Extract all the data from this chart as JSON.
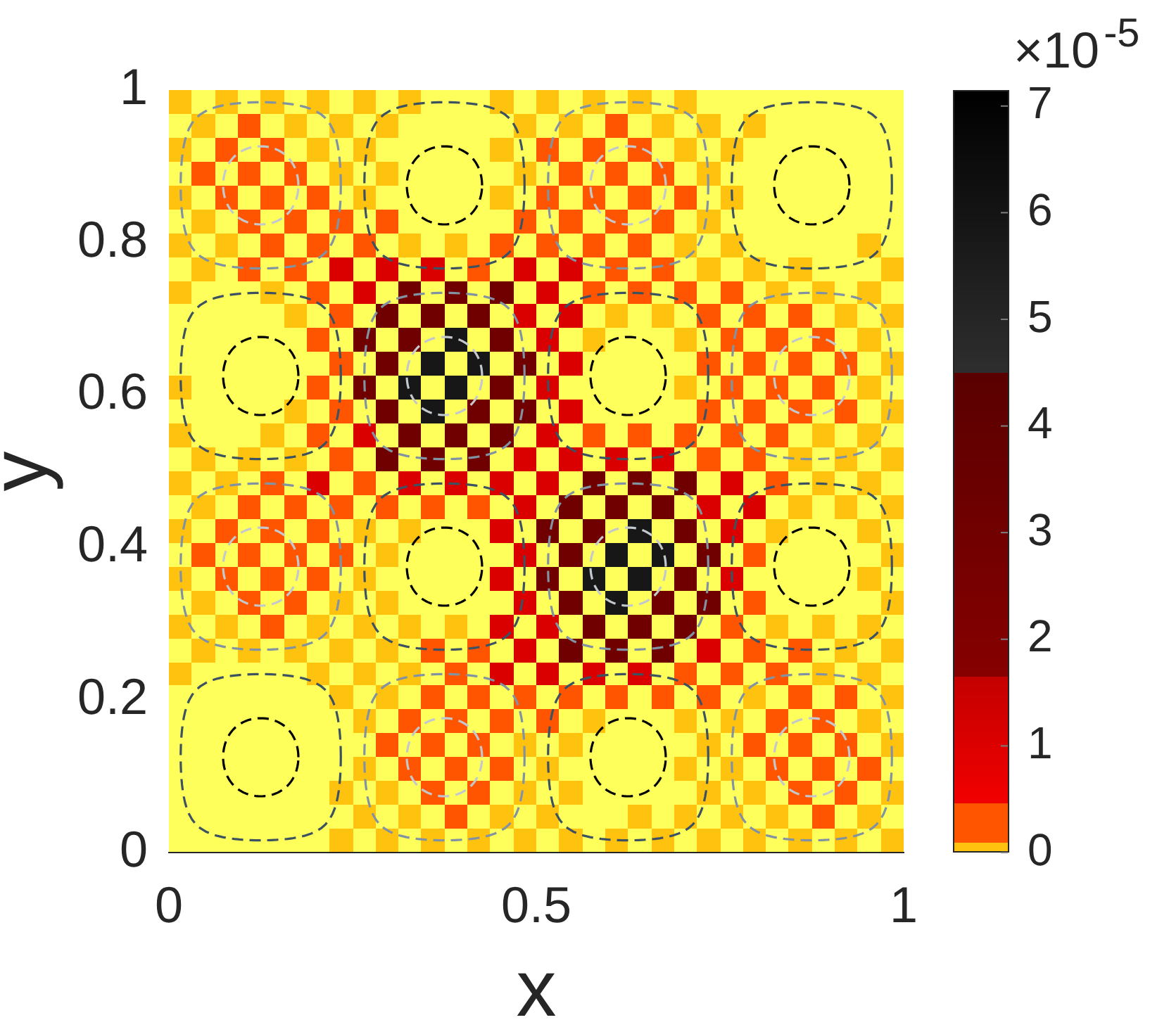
{
  "chart_data": {
    "type": "heatmap",
    "xlabel": "x",
    "ylabel": "y",
    "clabel": "×10$^{-5}$",
    "xlim": [
      0,
      1
    ],
    "ylim": [
      0,
      1
    ],
    "xticks": [
      0,
      0.5,
      1
    ],
    "yticks": [
      0,
      0.2,
      0.4,
      0.6,
      0.8,
      1
    ],
    "clim": [
      0,
      7.15
    ],
    "cticks": [
      0,
      1,
      2,
      3,
      4,
      5,
      6,
      7
    ],
    "cells": [
      [
        0.05,
        null,
        0.05,
        null,
        0.05,
        null,
        0.05,
        null,
        0.05,
        null,
        0.05,
        null,
        null,
        null,
        0.05,
        null,
        0.05,
        null,
        0.05,
        null,
        0.05,
        null,
        0.05,
        null,
        null,
        null,
        null,
        null,
        null,
        null,
        null,
        null
      ],
      [
        null,
        0.05,
        null,
        0.3,
        null,
        0.05,
        null,
        0.05,
        null,
        0.05,
        null,
        null,
        null,
        null,
        null,
        0.05,
        null,
        0.05,
        null,
        0.3,
        null,
        0.05,
        null,
        0.05,
        null,
        0.05,
        null,
        null,
        null,
        null,
        null,
        null
      ],
      [
        0.05,
        null,
        0.3,
        null,
        0.3,
        null,
        0.05,
        null,
        0.05,
        null,
        null,
        null,
        null,
        null,
        0.05,
        null,
        0.3,
        null,
        0.3,
        null,
        0.3,
        null,
        0.05,
        null,
        0.05,
        null,
        null,
        null,
        null,
        null,
        null,
        null
      ],
      [
        null,
        0.3,
        null,
        0.3,
        null,
        0.3,
        null,
        0.05,
        null,
        0.05,
        null,
        null,
        null,
        null,
        null,
        0.05,
        null,
        0.3,
        null,
        0.3,
        null,
        0.3,
        null,
        0.05,
        null,
        null,
        null,
        null,
        null,
        null,
        null,
        null
      ],
      [
        0.05,
        null,
        0.3,
        null,
        0.3,
        null,
        0.3,
        null,
        0.05,
        null,
        null,
        null,
        null,
        null,
        0.05,
        null,
        0.3,
        null,
        0.3,
        null,
        0.3,
        null,
        0.3,
        null,
        0.05,
        null,
        null,
        null,
        null,
        null,
        null,
        null
      ],
      [
        null,
        0.05,
        null,
        0.3,
        null,
        0.3,
        null,
        0.3,
        null,
        0.3,
        null,
        null,
        null,
        null,
        null,
        0.3,
        null,
        0.3,
        null,
        0.3,
        null,
        0.3,
        null,
        0.05,
        null,
        null,
        null,
        null,
        null,
        null,
        null,
        null
      ],
      [
        0.05,
        null,
        0.05,
        null,
        0.3,
        null,
        0.3,
        null,
        0.3,
        null,
        0.05,
        null,
        0.05,
        null,
        0.3,
        null,
        0.3,
        null,
        0.3,
        null,
        0.3,
        null,
        0.05,
        null,
        0.05,
        null,
        null,
        null,
        null,
        null,
        0.05,
        null
      ],
      [
        null,
        0.05,
        null,
        0.3,
        null,
        0.3,
        null,
        1.05,
        null,
        1.05,
        null,
        1.05,
        null,
        0.3,
        null,
        1.05,
        null,
        1.05,
        null,
        0.3,
        null,
        0.3,
        null,
        0.05,
        null,
        0.05,
        null,
        0.05,
        null,
        null,
        null,
        0.05
      ],
      [
        0.05,
        null,
        null,
        null,
        0.05,
        null,
        0.3,
        null,
        1.05,
        null,
        3.1,
        null,
        3.1,
        null,
        3.1,
        null,
        1.05,
        null,
        0.3,
        null,
        0.3,
        null,
        0.3,
        null,
        0.3,
        null,
        0.05,
        null,
        0.05,
        null,
        0.05,
        null
      ],
      [
        null,
        null,
        null,
        null,
        null,
        0.05,
        null,
        0.3,
        null,
        3.1,
        null,
        3.1,
        null,
        3.1,
        null,
        1.05,
        null,
        1.05,
        null,
        0.05,
        null,
        0.05,
        null,
        0.3,
        null,
        0.3,
        null,
        0.3,
        null,
        0.05,
        null,
        0.05
      ],
      [
        null,
        null,
        null,
        null,
        null,
        null,
        0.3,
        null,
        3.1,
        null,
        3.1,
        null,
        5.8,
        null,
        3.1,
        null,
        1.05,
        null,
        0.05,
        null,
        null,
        null,
        0.05,
        null,
        0.3,
        null,
        0.3,
        null,
        0.3,
        null,
        0.05,
        null
      ],
      [
        null,
        null,
        null,
        null,
        null,
        null,
        null,
        0.3,
        null,
        3.1,
        null,
        5.8,
        null,
        5.8,
        null,
        3.1,
        null,
        1.05,
        null,
        null,
        null,
        null,
        null,
        0.3,
        null,
        0.3,
        null,
        0.3,
        null,
        0.3,
        null,
        0.05
      ],
      [
        0.05,
        null,
        null,
        null,
        null,
        null,
        0.3,
        null,
        3.1,
        null,
        5.8,
        null,
        5.8,
        null,
        3.1,
        null,
        1.05,
        null,
        null,
        null,
        null,
        null,
        0.05,
        null,
        0.3,
        null,
        0.3,
        null,
        0.3,
        null,
        0.05,
        null
      ],
      [
        null,
        null,
        null,
        null,
        null,
        0.05,
        null,
        0.3,
        null,
        3.1,
        null,
        5.8,
        null,
        3.1,
        null,
        3.1,
        null,
        1.05,
        null,
        null,
        null,
        null,
        null,
        0.3,
        null,
        0.3,
        null,
        0.3,
        null,
        0.3,
        null,
        0.05
      ],
      [
        0.05,
        null,
        null,
        null,
        0.05,
        null,
        0.3,
        null,
        1.05,
        null,
        3.1,
        null,
        3.1,
        null,
        3.1,
        null,
        1.05,
        null,
        0.3,
        null,
        0.3,
        null,
        0.3,
        null,
        0.3,
        null,
        0.3,
        null,
        0.05,
        null,
        0.05,
        null
      ],
      [
        null,
        0.05,
        null,
        0.05,
        null,
        0.05,
        null,
        0.3,
        null,
        3.1,
        null,
        3.1,
        null,
        3.1,
        null,
        1.05,
        null,
        1.05,
        null,
        1.05,
        null,
        1.05,
        null,
        0.3,
        null,
        0.3,
        null,
        0.05,
        null,
        0.05,
        null,
        0.05
      ],
      [
        0.05,
        null,
        0.05,
        null,
        0.3,
        null,
        1.05,
        null,
        0.3,
        null,
        1.05,
        null,
        1.05,
        null,
        1.05,
        null,
        1.05,
        null,
        3.1,
        null,
        3.1,
        null,
        3.1,
        null,
        1.05,
        null,
        0.3,
        null,
        0.05,
        null,
        0.05,
        null
      ],
      [
        null,
        0.05,
        null,
        0.3,
        null,
        0.3,
        null,
        0.3,
        null,
        0.3,
        null,
        0.3,
        null,
        0.3,
        null,
        1.05,
        null,
        3.1,
        null,
        3.1,
        null,
        3.1,
        null,
        1.05,
        null,
        1.05,
        null,
        0.05,
        null,
        0.05,
        null,
        0.05
      ],
      [
        0.05,
        null,
        0.3,
        null,
        0.3,
        null,
        0.3,
        null,
        0.05,
        null,
        0.05,
        null,
        null,
        null,
        1.05,
        null,
        3.1,
        null,
        3.1,
        null,
        5.8,
        null,
        3.1,
        null,
        1.05,
        null,
        0.05,
        null,
        null,
        null,
        0.05,
        null
      ],
      [
        null,
        0.3,
        null,
        0.3,
        null,
        0.3,
        null,
        0.3,
        null,
        0.05,
        null,
        null,
        null,
        null,
        null,
        1.05,
        null,
        3.1,
        null,
        5.8,
        null,
        5.8,
        null,
        3.1,
        null,
        0.3,
        null,
        null,
        null,
        null,
        null,
        0.05
      ],
      [
        0.05,
        null,
        0.3,
        null,
        0.3,
        null,
        0.3,
        null,
        0.05,
        null,
        null,
        null,
        null,
        null,
        1.05,
        null,
        3.1,
        null,
        5.8,
        null,
        5.8,
        null,
        3.1,
        null,
        1.05,
        null,
        null,
        null,
        null,
        null,
        0.05,
        null
      ],
      [
        null,
        0.05,
        null,
        0.3,
        null,
        0.3,
        null,
        0.05,
        null,
        0.05,
        null,
        null,
        null,
        null,
        null,
        1.05,
        null,
        3.1,
        null,
        5.8,
        null,
        3.1,
        null,
        3.1,
        null,
        0.3,
        null,
        null,
        null,
        null,
        null,
        0.05
      ],
      [
        0.05,
        null,
        0.05,
        null,
        0.3,
        null,
        0.05,
        null,
        0.05,
        null,
        0.05,
        null,
        0.05,
        null,
        1.05,
        null,
        1.05,
        null,
        3.1,
        null,
        3.1,
        null,
        3.1,
        null,
        0.3,
        null,
        0.05,
        null,
        0.05,
        null,
        0.05,
        null
      ],
      [
        null,
        0.05,
        null,
        0.05,
        null,
        0.05,
        null,
        0.05,
        null,
        0.05,
        null,
        0.3,
        null,
        0.3,
        null,
        1.05,
        null,
        3.1,
        null,
        3.1,
        null,
        3.1,
        null,
        1.05,
        null,
        0.3,
        null,
        0.3,
        null,
        0.05,
        null,
        0.05
      ],
      [
        0.05,
        null,
        null,
        null,
        null,
        null,
        0.05,
        null,
        0.05,
        null,
        0.05,
        null,
        0.3,
        null,
        1.05,
        null,
        1.05,
        null,
        1.05,
        null,
        1.05,
        null,
        0.3,
        null,
        0.3,
        null,
        0.3,
        null,
        0.05,
        null,
        0.05,
        null
      ],
      [
        null,
        null,
        null,
        null,
        null,
        null,
        null,
        0.05,
        null,
        0.05,
        null,
        0.3,
        null,
        0.3,
        null,
        0.3,
        null,
        0.3,
        null,
        0.3,
        null,
        0.3,
        null,
        0.3,
        null,
        0.05,
        null,
        0.3,
        null,
        0.3,
        null,
        0.05
      ],
      [
        null,
        null,
        null,
        null,
        null,
        null,
        null,
        null,
        0.05,
        null,
        0.3,
        null,
        0.3,
        null,
        0.3,
        null,
        0.3,
        null,
        0.05,
        null,
        null,
        null,
        0.05,
        null,
        0.05,
        null,
        0.3,
        null,
        0.3,
        null,
        0.05,
        null
      ],
      [
        null,
        null,
        null,
        null,
        null,
        null,
        null,
        null,
        null,
        0.3,
        null,
        0.3,
        null,
        0.3,
        null,
        0.05,
        null,
        0.05,
        null,
        null,
        null,
        null,
        null,
        0.05,
        null,
        0.3,
        null,
        0.3,
        null,
        0.3,
        null,
        0.05
      ],
      [
        null,
        null,
        null,
        null,
        null,
        null,
        null,
        null,
        0.05,
        null,
        0.3,
        null,
        0.3,
        null,
        0.3,
        null,
        0.05,
        null,
        null,
        null,
        null,
        null,
        0.05,
        null,
        0.05,
        null,
        0.3,
        null,
        0.3,
        null,
        0.3,
        null
      ],
      [
        null,
        null,
        null,
        null,
        null,
        null,
        null,
        0.05,
        null,
        0.05,
        null,
        0.3,
        null,
        0.3,
        null,
        0.05,
        null,
        0.05,
        null,
        null,
        null,
        null,
        null,
        0.05,
        null,
        0.05,
        null,
        0.3,
        null,
        0.3,
        null,
        0.05
      ],
      [
        null,
        null,
        null,
        null,
        null,
        null,
        null,
        null,
        0.05,
        null,
        0.05,
        null,
        0.3,
        null,
        0.05,
        null,
        0.05,
        null,
        null,
        null,
        0.05,
        null,
        0.05,
        null,
        0.05,
        null,
        0.05,
        null,
        0.3,
        null,
        0.05,
        null
      ],
      [
        null,
        null,
        null,
        null,
        null,
        null,
        null,
        0.05,
        null,
        0.05,
        null,
        0.05,
        null,
        0.05,
        null,
        0.05,
        null,
        0.05,
        null,
        0.05,
        null,
        0.05,
        null,
        0.05,
        null,
        0.05,
        null,
        0.05,
        null,
        0.05,
        null,
        0.05
      ]
    ]
  }
}
